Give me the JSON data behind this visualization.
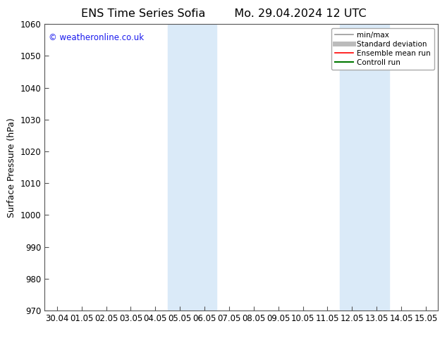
{
  "title_left": "ENS Time Series Sofia",
  "title_right": "Mo. 29.04.2024 12 UTC",
  "ylabel": "Surface Pressure (hPa)",
  "xlim_dates": [
    "30.04",
    "01.05",
    "02.05",
    "03.05",
    "04.05",
    "05.05",
    "06.05",
    "07.05",
    "08.05",
    "09.05",
    "10.05",
    "11.05",
    "12.05",
    "13.05",
    "14.05",
    "15.05"
  ],
  "ylim": [
    970,
    1060
  ],
  "yticks": [
    970,
    980,
    990,
    1000,
    1010,
    1020,
    1030,
    1040,
    1050,
    1060
  ],
  "bg_color": "#ffffff",
  "plot_bg_color": "#ffffff",
  "shaded_regions": [
    {
      "xstart": 4.5,
      "xend": 6.5,
      "color": "#daeaf8"
    },
    {
      "xstart": 11.5,
      "xend": 13.5,
      "color": "#daeaf8"
    }
  ],
  "watermark_text": "© weatheronline.co.uk",
  "watermark_color": "#1a1aee",
  "legend_items": [
    {
      "label": "min/max",
      "color": "#999999",
      "lw": 1.2,
      "ls": "-"
    },
    {
      "label": "Standard deviation",
      "color": "#bbbbbb",
      "lw": 5,
      "ls": "-"
    },
    {
      "label": "Ensemble mean run",
      "color": "#ff0000",
      "lw": 1.2,
      "ls": "-"
    },
    {
      "label": "Controll run",
      "color": "#007700",
      "lw": 1.5,
      "ls": "-"
    }
  ],
  "title_fontsize": 11.5,
  "axis_label_fontsize": 9,
  "tick_fontsize": 8.5,
  "legend_fontsize": 7.5,
  "watermark_fontsize": 8.5,
  "spine_color": "#555555",
  "tick_color": "#555555"
}
